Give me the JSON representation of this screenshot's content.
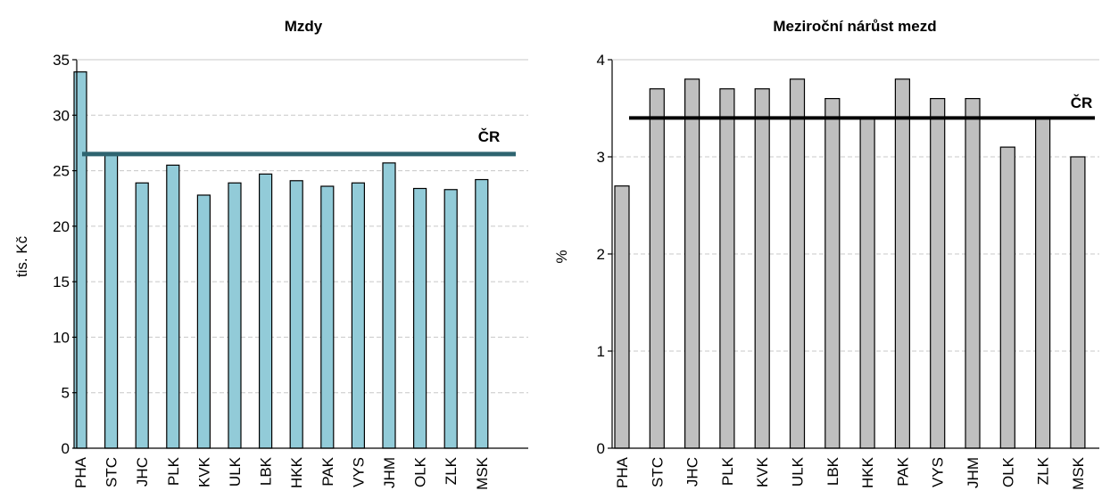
{
  "chart_data": [
    {
      "type": "bar",
      "title": "Mzdy",
      "ylabel": "tis. Kč",
      "xlabel": "",
      "categories": [
        "PHA",
        "STC",
        "JHC",
        "PLK",
        "KVK",
        "ULK",
        "LBK",
        "HKK",
        "PAK",
        "VYS",
        "JHM",
        "OLK",
        "ZLK",
        "MSK"
      ],
      "values": [
        33.9,
        26.5,
        23.9,
        25.5,
        22.8,
        23.9,
        24.7,
        24.1,
        23.6,
        23.9,
        25.7,
        23.4,
        23.3,
        24.2
      ],
      "ylim": [
        0,
        35
      ],
      "yticks": [
        0,
        5,
        10,
        15,
        20,
        25,
        30,
        35
      ],
      "reference_line": {
        "label": "ČR",
        "value": 26.5,
        "color": "#2e6470"
      },
      "bar_color": "#92cbd8",
      "grid": true
    },
    {
      "type": "bar",
      "title": "Meziroční nárůst mezd",
      "ylabel": "%",
      "xlabel": "",
      "categories": [
        "PHA",
        "STC",
        "JHC",
        "PLK",
        "KVK",
        "ULK",
        "LBK",
        "HKK",
        "PAK",
        "VYS",
        "JHM",
        "OLK",
        "ZLK",
        "MSK"
      ],
      "values": [
        2.7,
        3.7,
        3.8,
        3.7,
        3.7,
        3.8,
        3.6,
        3.4,
        3.8,
        3.6,
        3.6,
        3.1,
        3.4,
        3.0
      ],
      "ylim": [
        0,
        4
      ],
      "yticks": [
        0,
        1,
        2,
        3,
        4
      ],
      "reference_line": {
        "label": "ČR",
        "value": 3.4,
        "color": "#000000"
      },
      "bar_color": "#bfbfbf",
      "grid": true
    }
  ]
}
